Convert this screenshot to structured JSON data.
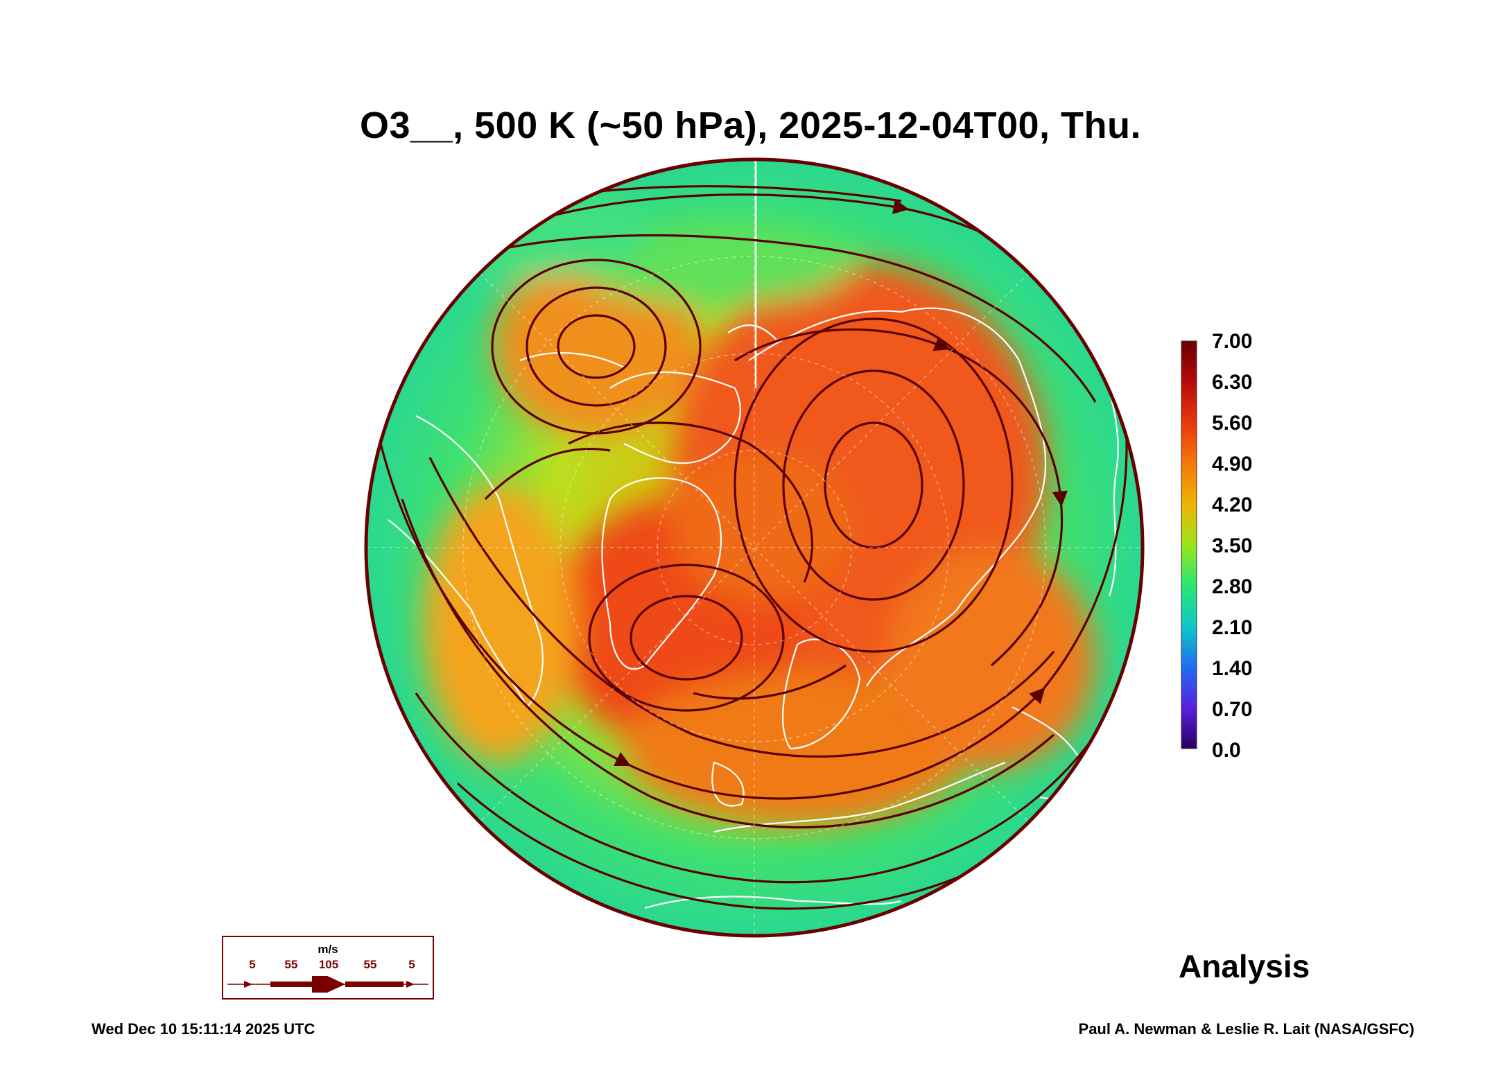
{
  "title": "O3__, 500 K (~50 hPa), 2025-12-04T00, Thu.",
  "colorbar": {
    "labels": [
      "7.00",
      "6.30",
      "5.60",
      "4.90",
      "4.20",
      "3.50",
      "2.80",
      "2.10",
      "1.40",
      "0.70",
      "0.0"
    ],
    "stops": [
      "#6a0000",
      "#b50a0a",
      "#e8380c",
      "#f5780a",
      "#f0b400",
      "#9be31e",
      "#28e870",
      "#10c8c8",
      "#1e6ef0",
      "#5a20e0",
      "#2a0060"
    ]
  },
  "wind_legend": {
    "unit": "m/s",
    "ticks": [
      "5",
      "55",
      "105",
      "55",
      "5"
    ],
    "color": "#7a0000"
  },
  "analysis_label": "Analysis",
  "footer": {
    "timestamp": "Wed Dec 10 15:11:14 2025 UTC",
    "credit": "Paul A. Newman & Leslie R. Lait (NASA/GSFC)"
  },
  "colors": {
    "background_field": "#2fe27a",
    "high_ozone": "#f0521a",
    "mid_ozone": "#f5a20a",
    "streamline": "#5a0000",
    "coastline": "#ffffff"
  }
}
